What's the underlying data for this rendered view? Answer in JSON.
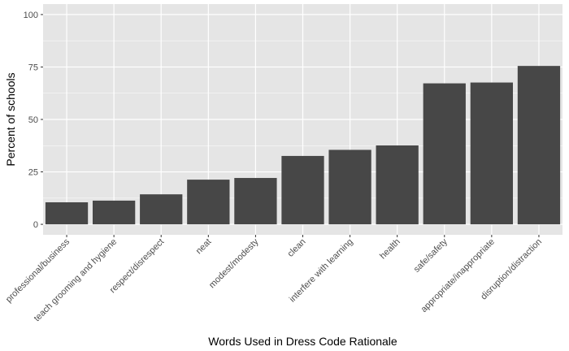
{
  "colors": {
    "panel_background": "#E5E5E5",
    "grid_major": "#FFFFFF",
    "bar_fill": "#474747",
    "tick_text": "#4D4D4D",
    "tick_mark": "#333333"
  },
  "chart_data": {
    "type": "bar",
    "title": "",
    "xlabel": "Words Used in Dress Code Rationale",
    "ylabel": "Percent of schools",
    "ylim": [
      0,
      100
    ],
    "yticks": [
      0,
      25,
      50,
      75,
      100
    ],
    "grid": true,
    "categories": [
      "professional/business",
      "teach grooming and hygiene",
      "respect/disrespect",
      "neat",
      "modest/modesty",
      "clean",
      "interfere with learning",
      "health",
      "safe/safety",
      "appropriate/inappropriate",
      "disruption/distraction"
    ],
    "values": [
      10.5,
      11.3,
      14.3,
      21.3,
      22.1,
      32.6,
      35.5,
      37.6,
      67.2,
      67.6,
      75.5
    ]
  }
}
